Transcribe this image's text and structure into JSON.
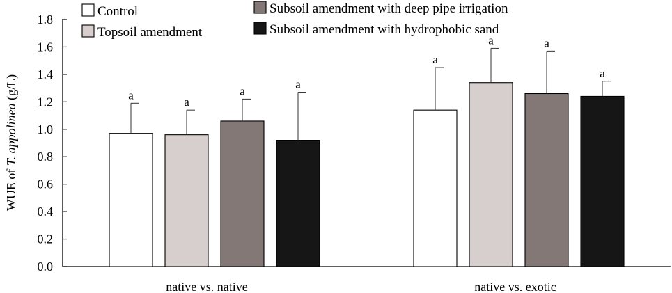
{
  "chart_data": {
    "type": "bar",
    "categories": [
      "native vs. native",
      "native vs. exotic"
    ],
    "ylabel_prefix": "WUE of ",
    "ylabel_italic": "T. appolinea",
    "ylabel_suffix": " (g/L)",
    "xlabel": "",
    "ylim": [
      0,
      1.8
    ],
    "yticks": [
      "0.0",
      "0.2",
      "0.4",
      "0.6",
      "0.8",
      "1.0",
      "1.2",
      "1.4",
      "1.6",
      "1.8"
    ],
    "grid": false,
    "legend_position": "top",
    "series": [
      {
        "name": "Control",
        "color": "#ffffff",
        "values": [
          0.97,
          1.14
        ],
        "errors": [
          0.22,
          0.31
        ],
        "labels": [
          "a",
          "a"
        ]
      },
      {
        "name": "Topsoil amendment",
        "color": "#d6cfcd",
        "values": [
          0.96,
          1.34
        ],
        "errors": [
          0.18,
          0.25
        ],
        "labels": [
          "a",
          "a"
        ]
      },
      {
        "name": "Subsoil amendment with deep pipe irrigation",
        "color": "#837876",
        "values": [
          1.06,
          1.26
        ],
        "errors": [
          0.16,
          0.31
        ],
        "labels": [
          "a",
          "a"
        ]
      },
      {
        "name": "Subsoil amendment with hydrophobic sand",
        "color": "#161616",
        "values": [
          0.92,
          1.24
        ],
        "errors": [
          0.35,
          0.11
        ],
        "labels": [
          "a",
          "a"
        ]
      }
    ]
  }
}
